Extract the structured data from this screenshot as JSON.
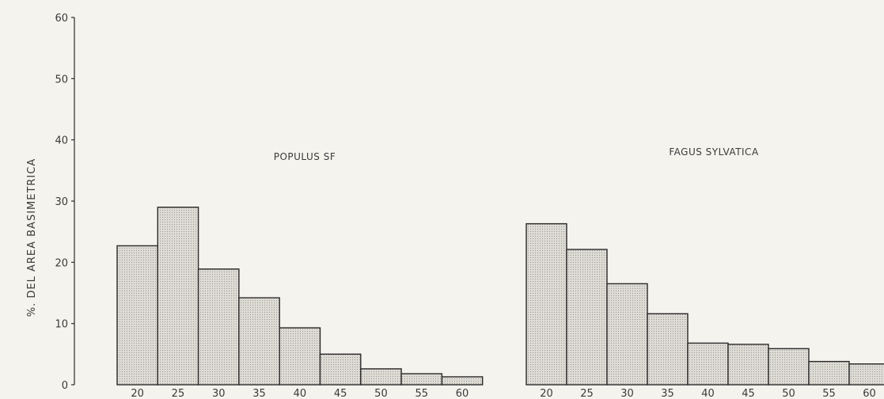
{
  "chart_data": [
    {
      "type": "bar",
      "title": "POPULUS SF",
      "ylabel": "%. DEL AREA BASIMETRICA",
      "categories": [
        "20",
        "25",
        "30",
        "35",
        "40",
        "45",
        "50",
        "55",
        "60"
      ],
      "values": [
        22.7,
        29.0,
        18.9,
        14.2,
        9.3,
        5.0,
        2.6,
        1.8,
        1.3
      ],
      "ylim": [
        0,
        60
      ],
      "yticks": [
        "0",
        "10",
        "20",
        "30",
        "40",
        "50",
        "60"
      ],
      "grid": false
    },
    {
      "type": "bar",
      "title": "FAGUS SYLVATICA",
      "categories": [
        "20",
        "25",
        "30",
        "35",
        "40",
        "45",
        "50",
        "55",
        "60"
      ],
      "values": [
        26.3,
        22.1,
        16.5,
        11.6,
        6.8,
        6.6,
        5.9,
        3.8,
        3.4
      ],
      "ylim": [
        0,
        60
      ],
      "grid": false
    }
  ],
  "colors": {
    "bar_fill": "#dcdad3",
    "bar_stroke": "#2b2b2b",
    "background": "#f4f3ee"
  }
}
